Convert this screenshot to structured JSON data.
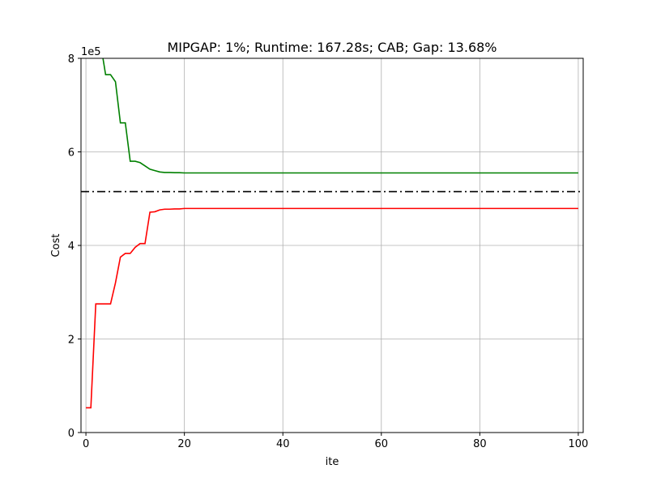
{
  "chart_data": {
    "type": "line",
    "title": "MIPGAP: 1%; Runtime: 167.28s; CAB; Gap: 13.68%",
    "xlabel": "ite",
    "ylabel": "Cost",
    "y_offset_label": "1e5",
    "xlim": [
      -1,
      101
    ],
    "ylim": [
      0,
      800000
    ],
    "grid": true,
    "x_ticks": [
      0,
      20,
      40,
      60,
      80,
      100
    ],
    "x_tick_labels": [
      "0",
      "20",
      "40",
      "60",
      "80",
      "100"
    ],
    "y_ticks": [
      0,
      200000,
      400000,
      600000,
      800000
    ],
    "y_tick_labels": [
      "0",
      "2",
      "4",
      "6",
      "8"
    ],
    "series": [
      {
        "color": "#008000",
        "style": "solid",
        "x": [
          3,
          4,
          5,
          6,
          7,
          8,
          9,
          10,
          11,
          12,
          13,
          14,
          15,
          16,
          17,
          18,
          19,
          20,
          30,
          40,
          60,
          80,
          100
        ],
        "y": [
          830000,
          765000,
          765000,
          750000,
          662000,
          662000,
          580000,
          580000,
          577000,
          570000,
          563000,
          560000,
          557000,
          556000,
          556000,
          555500,
          555500,
          555000,
          555000,
          555000,
          555000,
          555000,
          555000
        ]
      },
      {
        "color": "#ff0000",
        "style": "solid",
        "x": [
          0,
          1,
          2,
          3,
          4,
          5,
          6,
          7,
          8,
          9,
          10,
          11,
          12,
          13,
          14,
          15,
          16,
          17,
          18,
          19,
          20,
          40,
          60,
          80,
          100
        ],
        "y": [
          53000,
          53000,
          275000,
          275000,
          275000,
          275000,
          320000,
          375000,
          383000,
          383000,
          396000,
          404000,
          404000,
          471000,
          472000,
          476000,
          477500,
          477500,
          478000,
          478000,
          479000,
          479000,
          479000,
          479000,
          479000
        ]
      },
      {
        "color": "#000000",
        "style": "dashdot",
        "x": [
          -1,
          101
        ],
        "y": [
          515000,
          515000
        ]
      }
    ]
  }
}
